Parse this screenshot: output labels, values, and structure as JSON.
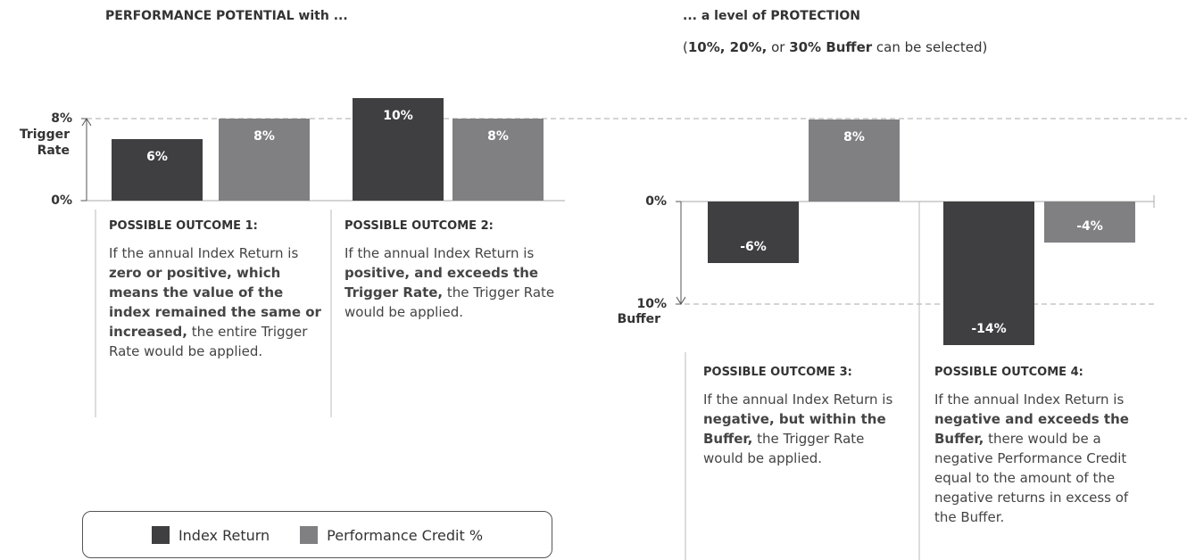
{
  "left_title": "PERFORMANCE POTENTIAL with ...",
  "right_title": "... a level of PROTECTION",
  "right_subtitle": [
    {
      "text": "(",
      "bold": false
    },
    {
      "text": "10%, 20%,",
      "bold": true
    },
    {
      "text": " or ",
      "bold": false
    },
    {
      "text": "30% Buffer",
      "bold": true
    },
    {
      "text": " can be selected)",
      "bold": false
    }
  ],
  "left_axis": {
    "ticks": [
      {
        "value": 8,
        "label": "8%"
      },
      {
        "value": 0,
        "label": "0%"
      }
    ],
    "caption": "Trigger Rate"
  },
  "right_axis": {
    "ticks": [
      {
        "value": 0,
        "label": "0%"
      },
      {
        "value": -10,
        "label": "10%"
      }
    ],
    "caption": "Buffer"
  },
  "outcomes": [
    {
      "title": "POSSIBLE OUTCOME 1:",
      "values": [
        6,
        8
      ],
      "value_labels": [
        "6%",
        "8%"
      ],
      "text": [
        {
          "text": "If the annual Index Return is ",
          "bold": false
        },
        {
          "text": "zero or positive, which means the value of the index remained the same or increased,",
          "bold": true
        },
        {
          "text": " the entire Trigger Rate would be applied.",
          "bold": false
        }
      ]
    },
    {
      "title": "POSSIBLE OUTCOME 2:",
      "values": [
        10,
        8
      ],
      "value_labels": [
        "10%",
        "8%"
      ],
      "text": [
        {
          "text": "If the annual Index Return is ",
          "bold": false
        },
        {
          "text": "positive, and exceeds the Trigger Rate,",
          "bold": true
        },
        {
          "text": " the Trigger Rate would be applied.",
          "bold": false
        }
      ]
    },
    {
      "title": "POSSIBLE OUTCOME 3:",
      "values": [
        -6,
        8
      ],
      "value_labels": [
        "-6%",
        "8%"
      ],
      "text": [
        {
          "text": "If the annual Index Return is ",
          "bold": false
        },
        {
          "text": "negative, but within the Buffer,",
          "bold": true
        },
        {
          "text": " the Trigger Rate would be applied.",
          "bold": false
        }
      ]
    },
    {
      "title": "POSSIBLE OUTCOME 4:",
      "values": [
        -14,
        -4
      ],
      "value_labels": [
        "-14%",
        "-4%"
      ],
      "text": [
        {
          "text": "If the annual Index Return is ",
          "bold": false
        },
        {
          "text": "negative and exceeds the Buffer,",
          "bold": true
        },
        {
          "text": " there would be a negative Performance Credit equal to the amount of the negative returns in excess of the Buffer.",
          "bold": false
        }
      ]
    }
  ],
  "legend": [
    {
      "name": "Index Return",
      "color": "#3f3f41"
    },
    {
      "name": "Performance Credit %",
      "color": "#808083"
    }
  ]
}
